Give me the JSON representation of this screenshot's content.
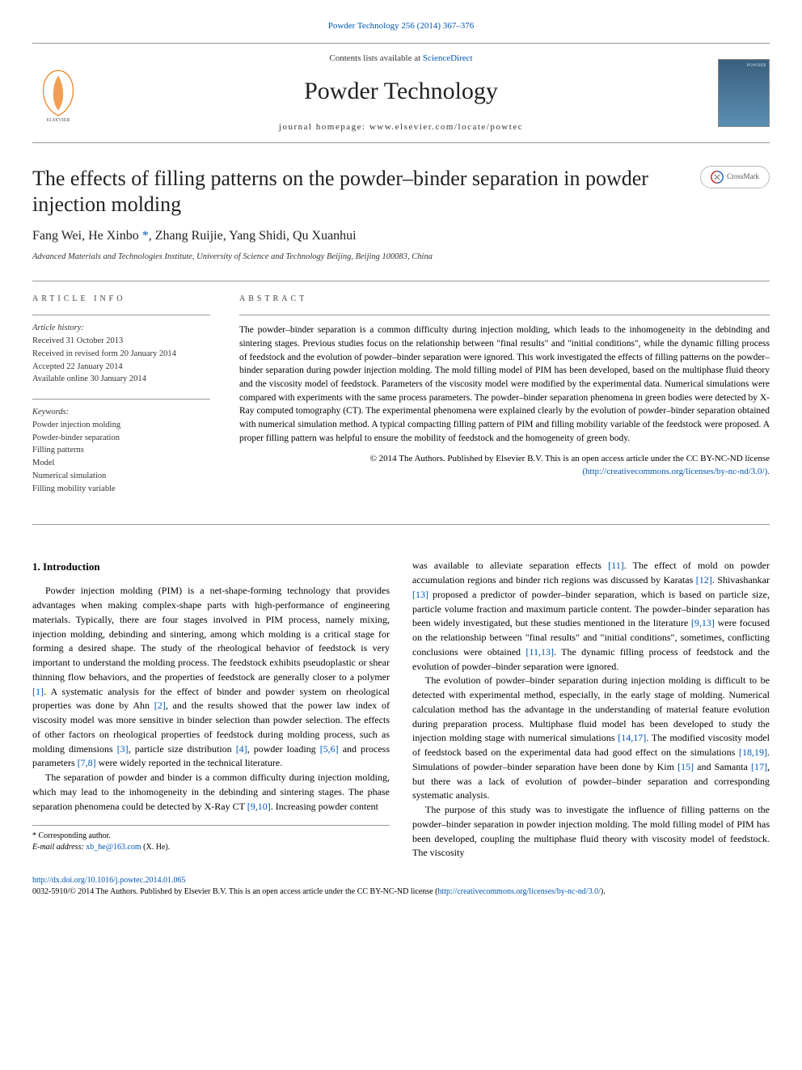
{
  "top_link": {
    "label": "Powder Technology 256 (2014) 367–376",
    "color": "#0056b3"
  },
  "header": {
    "contents_prefix": "Contents lists available at ",
    "contents_link": "ScienceDirect",
    "journal_title": "Powder Technology",
    "homepage_prefix": "journal homepage: ",
    "homepage_url": "www.elsevier.com/locate/powtec"
  },
  "crossmark_label": "CrossMark",
  "article": {
    "title": "The effects of filling patterns on the powder–binder separation in powder injection molding",
    "authors_plain": "Fang Wei, He Xinbo ",
    "corr_marker": "*",
    "authors_rest": ", Zhang Ruijie, Yang Shidi, Qu Xuanhui",
    "affiliation": "Advanced Materials and Technologies Institute, University of Science and Technology Beijing, Beijing 100083, China"
  },
  "info": {
    "label": "article info",
    "history_heading": "Article history:",
    "history": [
      "Received 31 October 2013",
      "Received in revised form 20 January 2014",
      "Accepted 22 January 2014",
      "Available online 30 January 2014"
    ],
    "keywords_heading": "Keywords:",
    "keywords": [
      "Powder injection molding",
      "Powder-binder separation",
      "Filling patterns",
      "Model",
      "Numerical simulation",
      "Filling mobility variable"
    ]
  },
  "abstract": {
    "label": "abstract",
    "text": "The powder–binder separation is a common difficulty during injection molding, which leads to the inhomogeneity in the debinding and sintering stages. Previous studies focus on the relationship between \"final results\" and \"initial conditions\", while the dynamic filling process of feedstock and the evolution of powder–binder separation were ignored. This work investigated the effects of filling patterns on the powder–binder separation during powder injection molding. The mold filling model of PIM has been developed, based on the multiphase fluid theory and the viscosity model of feedstock. Parameters of the viscosity model were modified by the experimental data. Numerical simulations were compared with experiments with the same process parameters. The powder–binder separation phenomena in green bodies were detected by X-Ray computed tomography (CT). The experimental phenomena were explained clearly by the evolution of powder–binder separation obtained with numerical simulation method. A typical compacting filling pattern of PIM and filling mobility variable of the feedstock were proposed. A proper filling pattern was helpful to ensure the mobility of feedstock and the homogeneity of green body.",
    "copyright": "© 2014 The Authors. Published by Elsevier B.V. This is an open access article under the CC BY-NC-ND license",
    "license_url": "(http://creativecommons.org/licenses/by-nc-nd/3.0/)."
  },
  "body": {
    "heading": "1. Introduction",
    "left_paragraphs": [
      "Powder injection molding (PIM) is a net-shape-forming technology that provides advantages when making complex-shape parts with high-performance of engineering materials. Typically, there are four stages involved in PIM process, namely mixing, injection molding, debinding and sintering, among which molding is a critical stage for forming a desired shape. The study of the rheological behavior of feedstock is very important to understand the molding process. The feedstock exhibits pseudoplastic or shear thinning flow behaviors, and the properties of feedstock are generally closer to a polymer [1]. A systematic analysis for the effect of binder and powder system on rheological properties was done by Ahn [2], and the results showed that the power law index of viscosity model was more sensitive in binder selection than powder selection. The effects of other factors on rheological properties of feedstock during molding process, such as molding dimensions [3], particle size distribution [4], powder loading [5,6] and process parameters [7,8] were widely reported in the technical literature.",
      "The separation of powder and binder is a common difficulty during injection molding, which may lead to the inhomogeneity in the debinding and sintering stages. The phase separation phenomena could be detected by X-Ray CT [9,10]. Increasing powder content"
    ],
    "right_paragraphs": [
      "was available to alleviate separation effects [11]. The effect of mold on powder accumulation regions and binder rich regions was discussed by Karatas [12]. Shivashankar [13] proposed a predictor of powder–binder separation, which is based on particle size, particle volume fraction and maximum particle content. The powder–binder separation has been widely investigated, but these studies mentioned in the literature [9,13] were focused on the relationship between \"final results\" and \"initial conditions\", sometimes, conflicting conclusions were obtained [11,13]. The dynamic filling process of feedstock and the evolution of powder–binder separation were ignored.",
      "The evolution of powder–binder separation during injection molding is difficult to be detected with experimental method, especially, in the early stage of molding. Numerical calculation method has the advantage in the understanding of material feature evolution during preparation process. Multiphase fluid model has been developed to study the injection molding stage with numerical simulations [14,17]. The modified viscosity model of feedstock based on the experimental data had good effect on the simulations [18,19]. Simulations of powder–binder separation have been done by Kim [15] and Samanta [17], but there was a lack of evolution of powder–binder separation and corresponding systematic analysis.",
      "The purpose of this study was to investigate the influence of filling patterns on the powder–binder separation in powder injection molding. The mold filling model of PIM has been developed, coupling the multiphase fluid theory with viscosity model of feedstock. The viscosity"
    ]
  },
  "refs": [
    "[1]",
    "[2]",
    "[3]",
    "[4]",
    "[5,6]",
    "[7,8]",
    "[9,10]",
    "[11]",
    "[12]",
    "[13]",
    "[9,13]",
    "[11,13]",
    "[14,17]",
    "[18,19]",
    "[15]",
    "[17]"
  ],
  "footnote": {
    "corr_label": "* Corresponding author.",
    "email_label": "E-mail address: ",
    "email": "xb_he@163.com",
    "email_suffix": " (X. He)."
  },
  "bottom": {
    "doi": "http://dx.doi.org/10.1016/j.powtec.2014.01.065",
    "issn_line": "0032-5910/© 2014 The Authors. Published by Elsevier B.V. This is an open access article under the CC BY-NC-ND license (",
    "license_url": "http://creativecommons.org/licenses/by-nc-nd/3.0/",
    "issn_suffix": ")."
  },
  "colors": {
    "link": "#0056b3",
    "text": "#000000",
    "muted": "#333333",
    "border": "#999999",
    "elsevier_orange": "#ee7f1a",
    "cover_top": "#3a5f7d",
    "cover_bottom": "#5a8fb5"
  },
  "typography": {
    "body_pt": 12,
    "title_pt": 26,
    "journal_pt": 30,
    "abstract_pt": 11.5,
    "small_pt": 10.5
  }
}
